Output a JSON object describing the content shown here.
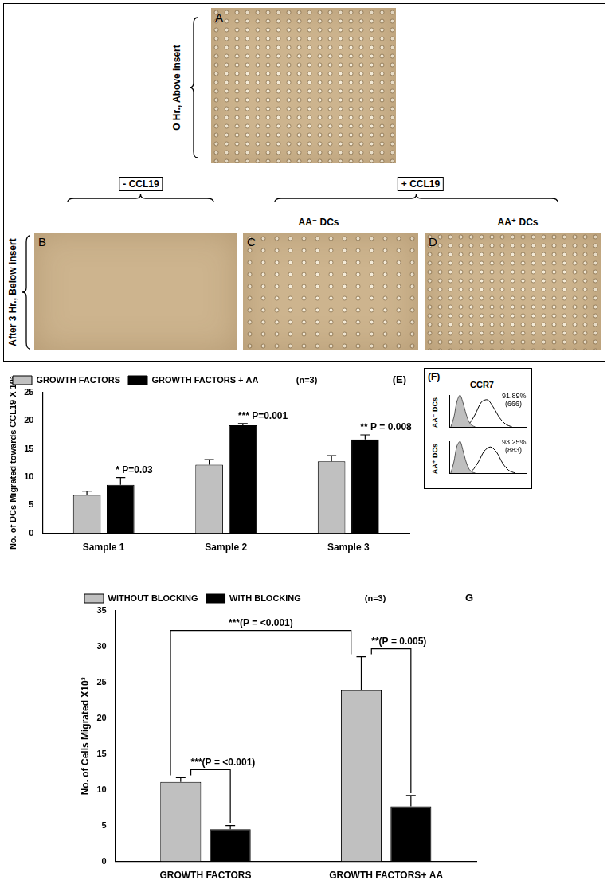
{
  "micrographs": {
    "above_label": "O Hr., Above insert",
    "below_label": "After 3 Hr., Below insert",
    "conditions": [
      "- CCL19",
      "+ CCL19"
    ],
    "groups": [
      "AA⁻ DCs",
      "AA⁺ DCs"
    ],
    "letters": [
      "A",
      "B",
      "C",
      "D"
    ]
  },
  "chart_data": [
    {
      "type": "bar",
      "panel": "(E)",
      "note": "(n=3)",
      "y_label": "No. of DCs Migrated towards CCL19 X 10³",
      "categories": [
        "Sample 1",
        "Sample 2",
        "Sample 3"
      ],
      "series": [
        {
          "name": "GROWTH FACTORS",
          "color": "#c0c0c0",
          "values": [
            6.8,
            12.2,
            12.8
          ],
          "errors": [
            0.7,
            0.9,
            1.0
          ]
        },
        {
          "name": "GROWTH FACTORS + AA",
          "color": "#000000",
          "values": [
            8.6,
            19.2,
            16.7
          ],
          "errors": [
            1.3,
            0.3,
            0.8
          ]
        }
      ],
      "ylim": [
        0,
        25
      ],
      "yticks": [
        0,
        5,
        10,
        15,
        20,
        25
      ],
      "grid": false,
      "legend": "upper left",
      "annotations": [
        {
          "text": "* P=0.03",
          "series": "GROWTH FACTORS + AA",
          "category": "Sample 1"
        },
        {
          "text": "*** P=0.001",
          "series": "GROWTH FACTORS + AA",
          "category": "Sample 2"
        },
        {
          "text": "** P = 0.008",
          "series": "GROWTH FACTORS + AA",
          "category": "Sample 3"
        }
      ]
    },
    {
      "type": "line",
      "panel": "(F)",
      "title": "CCR7",
      "xlim": [
        0,
        100
      ],
      "ylim": [
        0,
        100
      ],
      "tick_labels": false,
      "rows": [
        {
          "label": "AA⁻ DCs",
          "annotations": [
            "91.89%",
            "(666)"
          ],
          "series": [
            {
              "type": "area",
              "color": "#bfbfbf",
              "x": [
                2,
                6,
                10,
                14,
                18,
                22,
                26,
                30,
                34
              ],
              "values": [
                0,
                30,
                80,
                100,
                75,
                40,
                15,
                4,
                0
              ]
            },
            {
              "type": "line",
              "color": "#000000",
              "x": [
                18,
                26,
                34,
                42,
                50,
                58,
                66,
                74,
                82
              ],
              "values": [
                0,
                10,
                40,
                78,
                85,
                60,
                28,
                8,
                0
              ]
            }
          ]
        },
        {
          "label": "AA⁺ DCs",
          "annotations": [
            "93.25%",
            "(883)"
          ],
          "series": [
            {
              "type": "area",
              "color": "#bfbfbf",
              "x": [
                2,
                6,
                10,
                14,
                18,
                22,
                26,
                30,
                34
              ],
              "values": [
                0,
                35,
                85,
                100,
                70,
                35,
                12,
                3,
                0
              ]
            },
            {
              "type": "line",
              "color": "#000000",
              "x": [
                22,
                30,
                38,
                46,
                54,
                62,
                70,
                78,
                86
              ],
              "values": [
                0,
                8,
                35,
                70,
                82,
                65,
                30,
                8,
                0
              ]
            }
          ]
        }
      ]
    },
    {
      "type": "bar",
      "panel": "G",
      "note": "(n=3)",
      "y_label": "No. of Cells Migrated X10³",
      "categories": [
        "GROWTH FACTORS",
        "GROWTH FACTORS+ AA"
      ],
      "series": [
        {
          "name": "WITHOUT BLOCKING",
          "color": "#c0c0c0",
          "values": [
            11.1,
            23.9
          ],
          "errors": [
            0.6,
            4.7
          ]
        },
        {
          "name": "WITH BLOCKING",
          "color": "#000000",
          "values": [
            4.5,
            7.7
          ],
          "errors": [
            0.5,
            1.5
          ]
        }
      ],
      "ylim": [
        0,
        35
      ],
      "yticks": [
        0,
        5,
        10,
        15,
        20,
        25,
        30,
        35
      ],
      "grid": false,
      "legend": "upper left",
      "brackets": [
        {
          "text": "***(P = <0.001)",
          "from": {
            "series": "WITHOUT BLOCKING",
            "category": "GROWTH FACTORS"
          },
          "to": {
            "series": "WITHOUT BLOCKING",
            "category": "GROWTH FACTORS+ AA"
          }
        },
        {
          "text": "***(P = <0.001)",
          "from": {
            "series": "WITHOUT BLOCKING",
            "category": "GROWTH FACTORS"
          },
          "to": {
            "series": "WITH BLOCKING",
            "category": "GROWTH FACTORS"
          }
        },
        {
          "text": "**(P = 0.005)",
          "from": {
            "series": "WITHOUT BLOCKING",
            "category": "GROWTH FACTORS+ AA"
          },
          "to": {
            "series": "WITH BLOCKING",
            "category": "GROWTH FACTORS+ AA"
          }
        }
      ]
    }
  ]
}
